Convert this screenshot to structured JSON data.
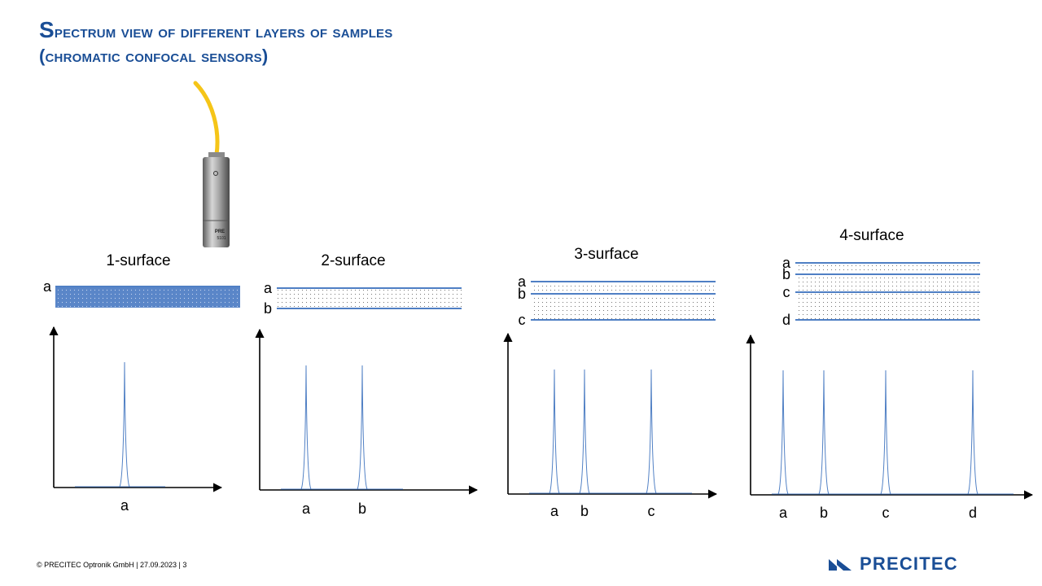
{
  "title": {
    "line1": "Spectrum view of different layers of samples",
    "line2": "(chromatic confocal sensors)"
  },
  "footer": {
    "text": "© PRECITEC  Optronik GmbH  | 27.09.2023 | 3"
  },
  "logo": {
    "text": "PRECITEC",
    "color": "#1a4e96"
  },
  "sensor": {
    "label1": "PRE",
    "label2": "5101",
    "cable_color": "#f5c518"
  },
  "colors": {
    "accent": "#1a4e96",
    "line": "#4f7fc4"
  },
  "panels": [
    {
      "title": "1-surface",
      "layers": [
        "a"
      ],
      "peaks": [
        "a"
      ]
    },
    {
      "title": "2-surface",
      "layers": [
        "a",
        "b"
      ],
      "peaks": [
        "a",
        "b"
      ]
    },
    {
      "title": "3-surface",
      "layers": [
        "a",
        "b",
        "c"
      ],
      "peaks": [
        "a",
        "b",
        "c"
      ]
    },
    {
      "title": "4-surface",
      "layers": [
        "a",
        "b",
        "c",
        "d"
      ],
      "peaks": [
        "a",
        "b",
        "c",
        "d"
      ]
    }
  ]
}
